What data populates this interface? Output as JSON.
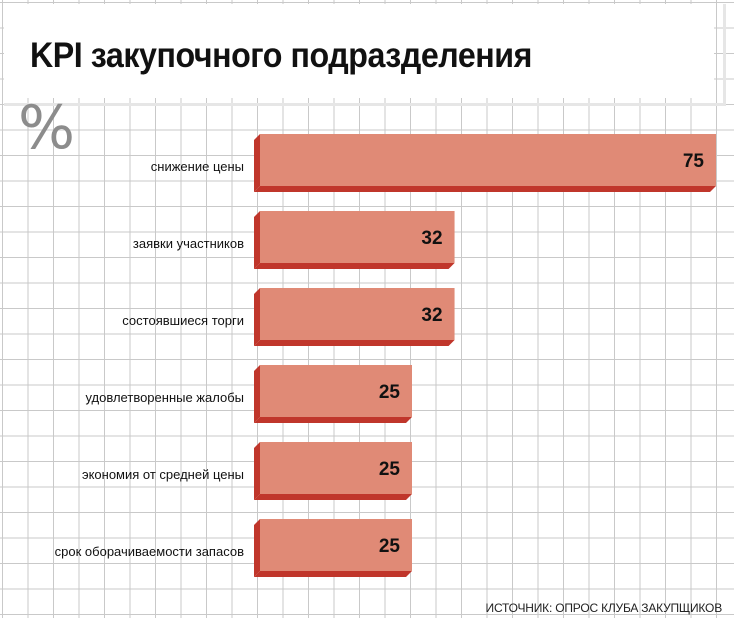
{
  "title": "KPI закупочного подразделения",
  "unit": "%",
  "source": "ИСТОЧНИК: ОПРОС КЛУБА ЗАКУПЩИКОВ",
  "colors": {
    "bar_face": "#e08a76",
    "bar_side": "#c0362b"
  },
  "chart_data": {
    "type": "bar",
    "orientation": "horizontal",
    "title": "KPI закупочного подразделения",
    "unit": "%",
    "categories": [
      "снижение цены",
      "заявки участников",
      "состоявшиеся торги",
      "удовлетворенные жалобы",
      "экономия от средней цены",
      "срок оборачиваемости запасов"
    ],
    "values": [
      75,
      32,
      32,
      25,
      25,
      25
    ],
    "xlim": [
      0,
      75
    ],
    "grid": true,
    "data_labels": true
  }
}
